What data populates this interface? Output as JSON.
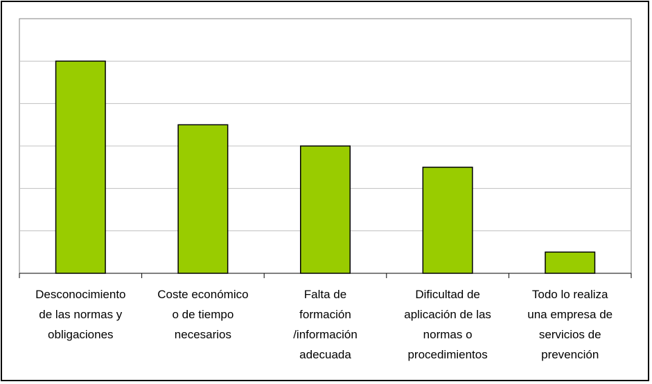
{
  "chart_data": {
    "type": "bar",
    "title": "",
    "xlabel": "",
    "ylabel": "",
    "categories": [
      [
        "Desconocimiento",
        "de las normas y",
        "obligaciones"
      ],
      [
        "Coste económico",
        "o de tiempo",
        "necesarios"
      ],
      [
        "Falta de",
        "formación",
        "/información",
        "adecuada"
      ],
      [
        "Dificultad de",
        "aplicación de las",
        "normas o",
        "procedimientos"
      ],
      [
        "Todo lo realiza",
        "una empresa de",
        "servicios de",
        "prevención"
      ]
    ],
    "values": [
      5.0,
      3.5,
      3.0,
      2.5,
      0.5
    ],
    "ylim": [
      0,
      6
    ],
    "grid": true,
    "y_tick_labels_shown": false,
    "legend": "none",
    "bar_color": "#99cc00",
    "bar_outline_color": "#000000",
    "gridline_color": "#c0c0c0"
  }
}
